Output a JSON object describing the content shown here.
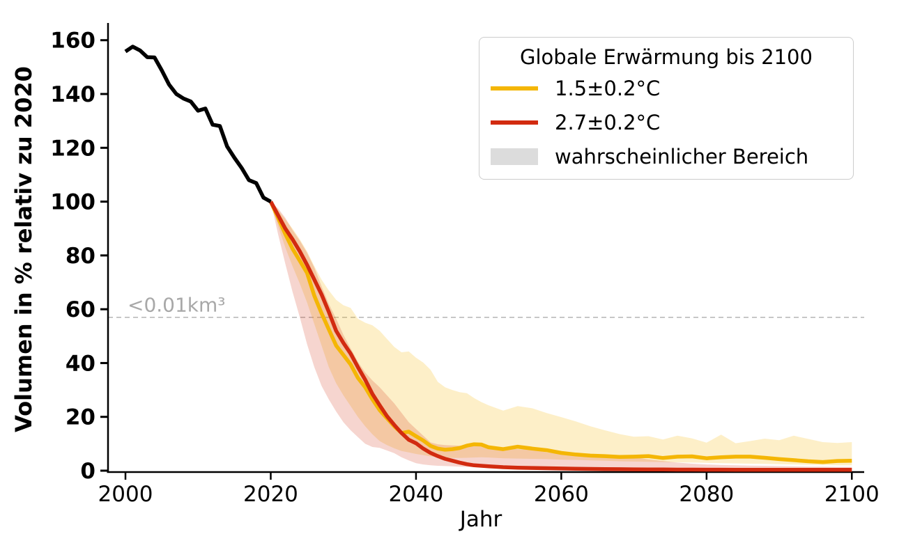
{
  "figure": {
    "ylabel": "Volumen in % relativ zu 2020",
    "xlabel": "Jahr",
    "background": "#ffffff",
    "legend": {
      "title": "Globale Erwärmung bis 2100",
      "items": [
        {
          "label": "1.5±0.2°C",
          "swatch": "line",
          "color": "#F4B605"
        },
        {
          "label": "2.7±0.2°C",
          "swatch": "line",
          "color": "#D22B10"
        },
        {
          "label": "wahrscheinlicher Bereich",
          "swatch": "patch",
          "color": "#DCDCDC"
        }
      ]
    }
  },
  "chart_data": {
    "type": "line",
    "title": "",
    "xlabel": "Jahr",
    "ylabel": "Volumen in % relativ zu 2020",
    "xlim": [
      1997.6,
      2101.7
    ],
    "ylim": [
      0,
      166.4
    ],
    "xticks": [
      2000,
      2020,
      2040,
      2060,
      2080,
      2100
    ],
    "yticks": [
      0,
      20,
      40,
      60,
      80,
      100,
      120,
      140,
      160
    ],
    "grid": false,
    "legend_position": "upper right",
    "threshold": {
      "value": 57,
      "label": "<0.01km³",
      "style": "dashed",
      "color": "#b5b5b5",
      "label_color": "#a8a8a8"
    },
    "series": [
      {
        "name": "historical",
        "color": "#000000",
        "x": [
          2000,
          2001,
          2002,
          2003,
          2004,
          2005,
          2006,
          2007,
          2008,
          2009,
          2010,
          2011,
          2012,
          2013,
          2014,
          2015,
          2016,
          2017,
          2018,
          2019,
          2020
        ],
        "values": [
          155.8,
          157.6,
          156.2,
          153.7,
          153.6,
          148.8,
          143.5,
          140.0,
          138.3,
          137.2,
          133.8,
          134.6,
          128.6,
          128.1,
          120.5,
          116.3,
          112.5,
          108.0,
          106.9,
          101.5,
          100.0
        ]
      },
      {
        "name": "1.5±0.2°C",
        "color": "#F4B605",
        "x": [
          2020,
          2021,
          2022,
          2023,
          2024,
          2025,
          2026,
          2027,
          2028,
          2029,
          2030,
          2031,
          2032,
          2033,
          2034,
          2035,
          2036,
          2037,
          2038,
          2039,
          2040,
          2041,
          2042,
          2043,
          2044,
          2045,
          2046,
          2047,
          2048,
          2049,
          2050,
          2052,
          2054,
          2056,
          2058,
          2060,
          2062,
          2064,
          2066,
          2068,
          2070,
          2072,
          2074,
          2076,
          2078,
          2080,
          2082,
          2084,
          2086,
          2088,
          2090,
          2092,
          2094,
          2096,
          2098,
          2100
        ],
        "values": [
          100,
          94,
          88,
          82.5,
          78,
          73.5,
          65,
          58.5,
          52.5,
          46.5,
          43,
          39.5,
          34.5,
          31,
          26.5,
          22.5,
          19.5,
          16.5,
          14,
          14.5,
          12.8,
          11.2,
          9.2,
          8.2,
          7.8,
          8,
          8.4,
          9.3,
          9.8,
          9.7,
          8.7,
          8,
          8.9,
          8.2,
          7.6,
          6.6,
          6,
          5.6,
          5.4,
          5.1,
          5.2,
          5.4,
          4.7,
          5.2,
          5.3,
          4.6,
          5,
          5.2,
          5.2,
          4.8,
          4.3,
          3.9,
          3.5,
          3.2,
          3.6,
          3.7
        ],
        "band_upper": [
          100,
          97,
          93.5,
          90,
          86,
          81.5,
          76,
          71,
          67,
          63.5,
          61.5,
          60.5,
          56.5,
          55,
          54,
          52,
          49,
          46,
          44,
          44.3,
          42,
          40.2,
          37.5,
          33,
          31,
          30,
          29.2,
          28.8,
          27,
          25.5,
          24.3,
          22.3,
          24,
          23.2,
          21.4,
          19.9,
          18.3,
          16.5,
          15,
          13.6,
          12.6,
          12.8,
          11.6,
          13,
          12,
          10.4,
          13.4,
          10.2,
          11,
          11.9,
          11.3,
          13,
          11.8,
          10.6,
          10.3,
          10.6
        ],
        "band_lower": [
          100,
          91,
          83,
          76,
          69.5,
          62.5,
          54.5,
          46.5,
          38.5,
          32.5,
          28,
          24,
          20,
          16.5,
          13.5,
          11,
          9.5,
          8.3,
          7.3,
          6.8,
          6.2,
          5.8,
          5.3,
          5,
          4.8,
          4.7,
          4.7,
          4.8,
          4.9,
          5,
          4.9,
          4.6,
          4.5,
          4.4,
          4.3,
          4.1,
          4,
          3.8,
          3.7,
          3.5,
          3.4,
          3.3,
          3.2,
          3.1,
          3,
          2.9,
          2.8,
          2.7,
          2.6,
          2.5,
          2.4,
          2.3,
          2.2,
          2.1,
          2,
          2
        ],
        "band_opacity": 0.22
      },
      {
        "name": "2.7±0.2°C",
        "color": "#D22B10",
        "x": [
          2020,
          2021,
          2022,
          2023,
          2024,
          2025,
          2026,
          2027,
          2028,
          2029,
          2030,
          2031,
          2032,
          2033,
          2034,
          2035,
          2036,
          2037,
          2038,
          2039,
          2040,
          2041,
          2042,
          2043,
          2044,
          2045,
          2046,
          2047,
          2048,
          2049,
          2050,
          2052,
          2054,
          2056,
          2058,
          2060,
          2062,
          2064,
          2066,
          2068,
          2070,
          2072,
          2074,
          2076,
          2078,
          2080,
          2082,
          2084,
          2086,
          2088,
          2090,
          2092,
          2094,
          2096,
          2098,
          2100
        ],
        "values": [
          100,
          95,
          90,
          86,
          81.5,
          76.5,
          71,
          65.5,
          59,
          52,
          47.5,
          43.5,
          38.5,
          33.8,
          28.5,
          24.3,
          20.3,
          17,
          14,
          11.5,
          10.2,
          8.2,
          6.6,
          5.4,
          4.4,
          3.7,
          3,
          2.4,
          2,
          1.8,
          1.6,
          1.3,
          1.1,
          1,
          0.9,
          0.8,
          0.7,
          0.65,
          0.6,
          0.55,
          0.5,
          0.45,
          0.45,
          0.4,
          0.4,
          0.35,
          0.35,
          0.3,
          0.3,
          0.3,
          0.3,
          0.3,
          0.3,
          0.3,
          0.3,
          0.3
        ],
        "band_upper": [
          100,
          97.5,
          94,
          89.5,
          85.5,
          81,
          75.5,
          68.5,
          62,
          56.5,
          50.5,
          45.5,
          40.5,
          36.5,
          33.5,
          31,
          28,
          25,
          21.5,
          18,
          15.5,
          13,
          10.5,
          9.8,
          9.5,
          9.4,
          9.3,
          9.3,
          9.3,
          9.1,
          9,
          8.5,
          8,
          7.8,
          6.8,
          6.3,
          6,
          5.8,
          5.6,
          5.4,
          5,
          4.2,
          3.6,
          3,
          2.6,
          2.3,
          2.1,
          2,
          1.9,
          1.8,
          1.7,
          1.6,
          1.5,
          1.5,
          1.4,
          1.4
        ],
        "band_lower": [
          100,
          88,
          77,
          66.5,
          57,
          47,
          38.5,
          31.5,
          26.5,
          22,
          18,
          15,
          12.5,
          10,
          8.8,
          8.5,
          7.5,
          6.5,
          5,
          3.8,
          2.8,
          2.3,
          2,
          1.8,
          1.7,
          1.6,
          1.5,
          1.4,
          1.3,
          1.2,
          1.1,
          1,
          0.9,
          0.8,
          0.75,
          0.7,
          0.6,
          0.6,
          0.55,
          0.5,
          0.45,
          0.4,
          0.4,
          0.35,
          0.3,
          0.3,
          0.25,
          0.25,
          0.2,
          0.2,
          0.2,
          0.2,
          0.15,
          0.15,
          0.15,
          0.15
        ],
        "band_opacity": 0.2
      }
    ]
  }
}
